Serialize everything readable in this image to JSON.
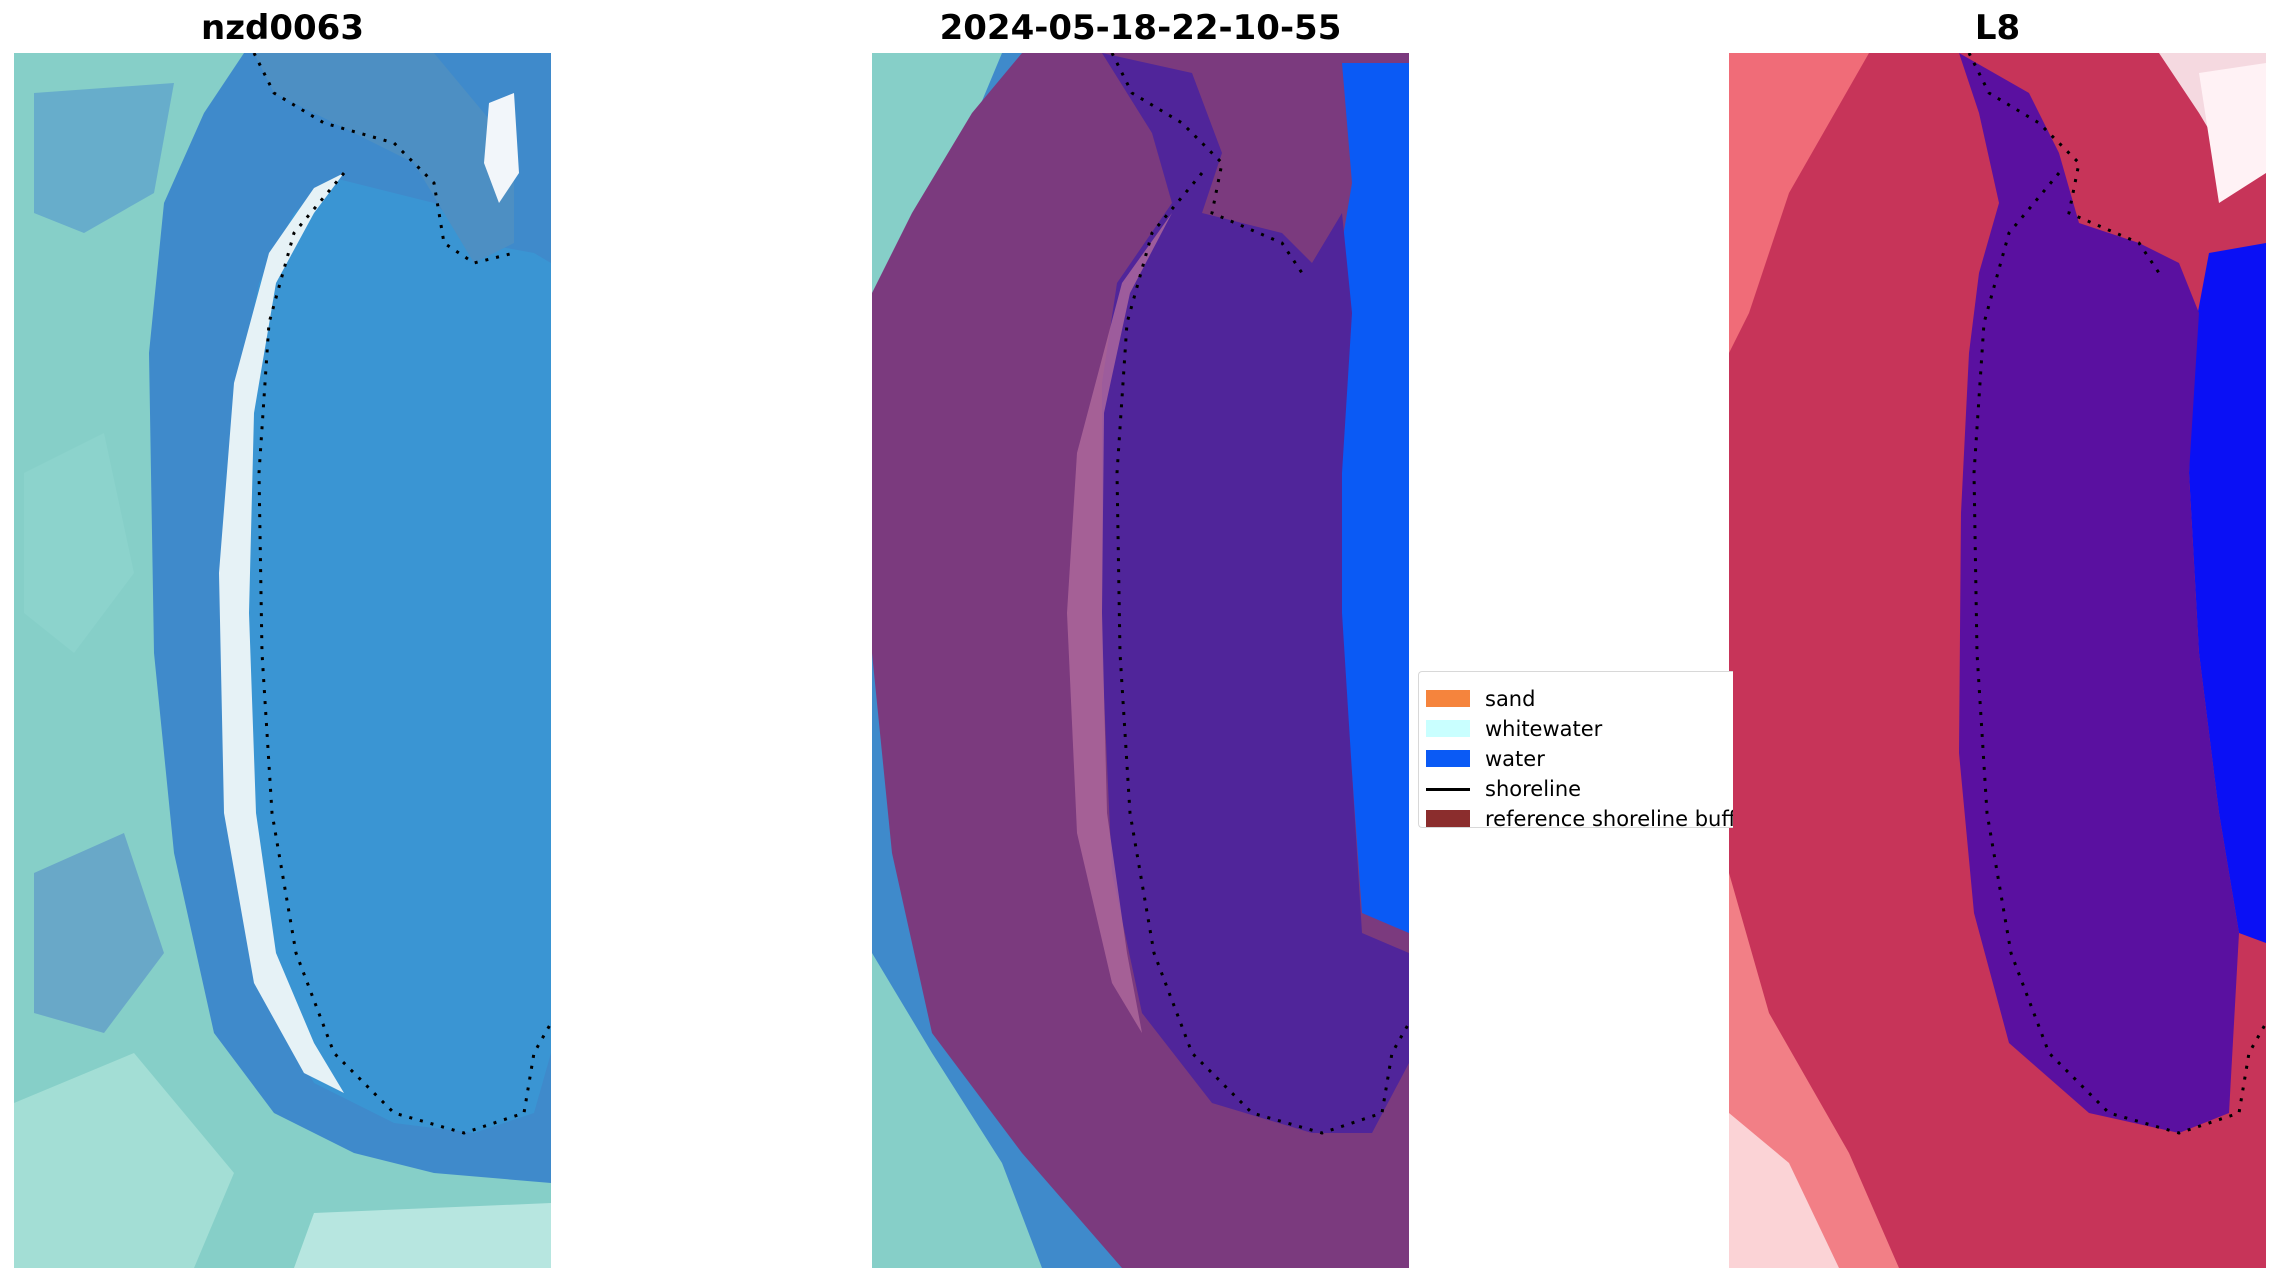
{
  "panels": [
    {
      "title": "nzd0063",
      "kind": "rgb"
    },
    {
      "title": "2024-05-18-22-10-55",
      "kind": "classified"
    },
    {
      "title": "L8",
      "kind": "index"
    }
  ],
  "legend": {
    "items": [
      {
        "label": "sand",
        "type": "patch",
        "color": "#F5843D"
      },
      {
        "label": "whitewater",
        "type": "patch",
        "color": "#C9FFFF"
      },
      {
        "label": "water",
        "type": "patch",
        "color": "#0A5AF5"
      },
      {
        "label": "shoreline",
        "type": "line",
        "color": "#000000"
      },
      {
        "label": "reference shoreline buff",
        "type": "patch",
        "color": "#8B2D2D"
      }
    ]
  },
  "colors": {
    "rgb_ocean": "#3F8ACB",
    "rgb_lagoon": "#3C95D2",
    "rgb_land": "#7EC9C6",
    "classified_buffer": "#7B3A7E",
    "classified_water": "#50259A",
    "classified_sea": "#0A5AF5",
    "index_land": "#C73459",
    "index_water": "#5A10A0",
    "index_sea": "#0A10F5"
  }
}
